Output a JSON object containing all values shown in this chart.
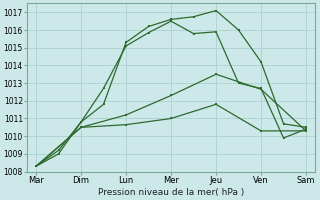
{
  "xlabel": "Pression niveau de la mer( hPa )",
  "x_labels": [
    "Mar",
    "Dim",
    "Lun",
    "Mer",
    "Jeu",
    "Ven",
    "Sam"
  ],
  "x_positions": [
    0,
    1,
    2,
    3,
    4,
    5,
    6
  ],
  "ylim": [
    1008,
    1017.5
  ],
  "yticks": [
    1008,
    1009,
    1010,
    1011,
    1012,
    1013,
    1014,
    1015,
    1016,
    1017
  ],
  "background_color": "#cce8e8",
  "grid_color": "#b0d4d4",
  "line_color": "#2d6a2d",
  "line1": {
    "x": [
      0,
      0.5,
      1.0,
      1.5,
      2.0,
      2.5,
      3.0,
      3.5,
      4.0,
      4.5,
      5.0,
      5.5,
      6.0
    ],
    "y": [
      1008.3,
      1009.2,
      1010.8,
      1011.8,
      1015.3,
      1016.2,
      1016.6,
      1016.75,
      1017.1,
      1016.0,
      1014.2,
      1010.7,
      1010.5
    ]
  },
  "line2": {
    "x": [
      0,
      0.5,
      1.0,
      1.5,
      2.0,
      2.5,
      3.0,
      3.5,
      4.0,
      4.5,
      5.0,
      5.5,
      6.0
    ],
    "y": [
      1008.3,
      1009.0,
      1010.8,
      1012.7,
      1015.1,
      1015.85,
      1016.5,
      1015.8,
      1015.9,
      1013.0,
      1012.7,
      1009.9,
      1010.4
    ]
  },
  "line3": {
    "x": [
      0,
      1.0,
      2.0,
      3.0,
      4.0,
      5.0,
      6.0
    ],
    "y": [
      1008.3,
      1010.5,
      1011.2,
      1012.3,
      1013.5,
      1012.65,
      1010.3
    ]
  },
  "line4": {
    "x": [
      0,
      1.0,
      2.0,
      3.0,
      4.0,
      5.0,
      6.0
    ],
    "y": [
      1008.3,
      1010.5,
      1010.65,
      1011.0,
      1011.8,
      1010.3,
      1010.3
    ]
  }
}
